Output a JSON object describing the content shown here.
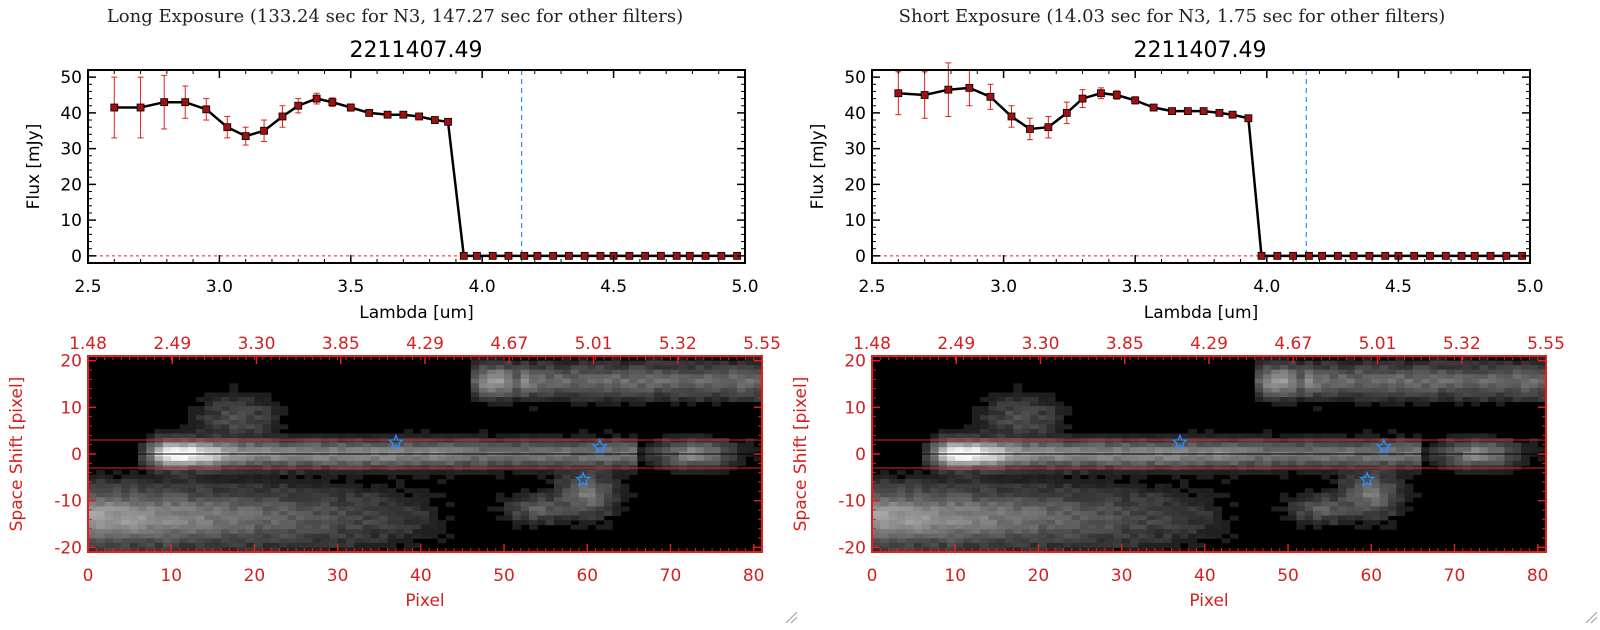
{
  "panels": [
    {
      "title": "Long Exposure (133.24 sec for N3, 147.27 sec for other filters)",
      "subtitle": "2211407.49"
    },
    {
      "title": "Short Exposure (14.03 sec for N3, 1.75 sec for other filters)",
      "subtitle": "2211407.49"
    }
  ],
  "chart_data": [
    {
      "type": "line",
      "title": "2211407.49",
      "xlabel": "Lambda [um]",
      "ylabel": "Flux [mJy]",
      "xlim": [
        2.5,
        5.0
      ],
      "ylim": [
        -2,
        52
      ],
      "xticks": [
        "2.5",
        "3.0",
        "3.5",
        "4.0",
        "4.5",
        "5.0"
      ],
      "yticks": [
        "0",
        "10",
        "20",
        "30",
        "40",
        "50"
      ],
      "x": [
        2.6,
        2.7,
        2.79,
        2.87,
        2.95,
        3.03,
        3.1,
        3.17,
        3.24,
        3.3,
        3.37,
        3.43,
        3.5,
        3.57,
        3.64,
        3.7,
        3.76,
        3.82,
        3.87,
        3.93,
        3.98,
        4.04,
        4.1,
        4.16,
        4.21,
        4.27,
        4.33,
        4.39,
        4.45,
        4.5,
        4.56,
        4.62,
        4.68,
        4.74,
        4.79,
        4.85,
        4.91,
        4.97
      ],
      "y": [
        41.5,
        41.5,
        43.0,
        43.0,
        41.0,
        36.0,
        33.5,
        35.0,
        39.0,
        42.0,
        44.0,
        43.0,
        41.5,
        40.0,
        39.5,
        39.5,
        39.0,
        38.0,
        37.5,
        0,
        0,
        0,
        0,
        0,
        0,
        0,
        0,
        0,
        0,
        0,
        0,
        0,
        0,
        0,
        0,
        0,
        0,
        0
      ],
      "yerr": [
        8.5,
        8.5,
        7.5,
        4.5,
        3,
        3,
        2.5,
        3,
        3,
        2,
        1.5,
        1.2,
        1,
        0.8,
        0.8,
        0.8,
        0.8,
        0.8,
        0.8,
        0,
        0,
        0,
        0,
        0,
        0,
        0,
        0,
        0,
        0,
        0,
        0,
        0,
        0,
        0,
        0,
        0,
        0,
        0
      ],
      "vline_x": 4.15,
      "hline_y": 0
    },
    {
      "type": "line",
      "title": "2211407.49",
      "xlabel": "Lambda [um]",
      "ylabel": "Flux [mJy]",
      "xlim": [
        2.5,
        5.0
      ],
      "ylim": [
        -2,
        52
      ],
      "xticks": [
        "2.5",
        "3.0",
        "3.5",
        "4.0",
        "4.5",
        "5.0"
      ],
      "yticks": [
        "0",
        "10",
        "20",
        "30",
        "40",
        "50"
      ],
      "x": [
        2.6,
        2.7,
        2.79,
        2.87,
        2.95,
        3.03,
        3.1,
        3.17,
        3.24,
        3.3,
        3.37,
        3.43,
        3.5,
        3.57,
        3.64,
        3.7,
        3.76,
        3.82,
        3.87,
        3.93,
        3.98,
        4.04,
        4.1,
        4.16,
        4.21,
        4.27,
        4.33,
        4.39,
        4.45,
        4.5,
        4.56,
        4.62,
        4.68,
        4.74,
        4.79,
        4.85,
        4.91,
        4.97
      ],
      "y": [
        45.5,
        45.0,
        46.5,
        47.0,
        44.5,
        39.0,
        35.5,
        36.0,
        40.0,
        44.0,
        45.5,
        45.0,
        43.5,
        41.5,
        40.5,
        40.5,
        40.5,
        40.0,
        39.5,
        38.5,
        0,
        0,
        0,
        0,
        0,
        0,
        0,
        0,
        0,
        0,
        0,
        0,
        0,
        0,
        0,
        0,
        0,
        0
      ],
      "yerr": [
        6,
        6.5,
        7.5,
        5,
        3.5,
        3,
        3,
        3,
        3,
        2.5,
        1.5,
        1.2,
        1,
        0.8,
        0.8,
        0.8,
        0.8,
        0.8,
        0.8,
        0.8,
        0,
        0,
        0,
        0,
        0,
        0,
        0,
        0,
        0,
        0,
        0,
        0,
        0,
        0,
        0,
        0,
        0,
        0
      ],
      "vline_x": 4.15,
      "hline_y": 0
    },
    {
      "type": "heatmap",
      "xlabel": "Pixel",
      "ylabel": "Space Shift [pixel]",
      "xlim": [
        0,
        81
      ],
      "ylim": [
        -21,
        21
      ],
      "xticks": [
        "0",
        "10",
        "20",
        "30",
        "40",
        "50",
        "60",
        "70",
        "80"
      ],
      "yticks": [
        "-20",
        "-10",
        "0",
        "10",
        "20"
      ],
      "top_ticks": [
        "1.48",
        "2.49",
        "3.30",
        "3.85",
        "4.29",
        "4.67",
        "5.01",
        "5.32",
        "5.55"
      ],
      "aperture_y": [
        -3,
        3
      ],
      "stars": [
        {
          "x": 37,
          "y": 2.5
        },
        {
          "x": 61.5,
          "y": 1.5
        },
        {
          "x": 59.5,
          "y": -5.5
        }
      ]
    },
    {
      "type": "heatmap",
      "xlabel": "Pixel",
      "ylabel": "Space Shift [pixel]",
      "xlim": [
        0,
        81
      ],
      "ylim": [
        -21,
        21
      ],
      "xticks": [
        "0",
        "10",
        "20",
        "30",
        "40",
        "50",
        "60",
        "70",
        "80"
      ],
      "yticks": [
        "-20",
        "-10",
        "0",
        "10",
        "20"
      ],
      "top_ticks": [
        "1.48",
        "2.49",
        "3.30",
        "3.85",
        "4.29",
        "4.67",
        "5.01",
        "5.32",
        "5.55"
      ],
      "aperture_y": [
        -3,
        3
      ],
      "stars": [
        {
          "x": 37,
          "y": 2.5
        },
        {
          "x": 61.5,
          "y": 1.5
        },
        {
          "x": 59.5,
          "y": -5.5
        }
      ]
    }
  ],
  "colors": {
    "line": "#000000",
    "marker": "#a01010",
    "errorbar": "#e02020",
    "vline": "#1e90ff",
    "image_frame": "#e02020",
    "star": "#2a8cff"
  }
}
